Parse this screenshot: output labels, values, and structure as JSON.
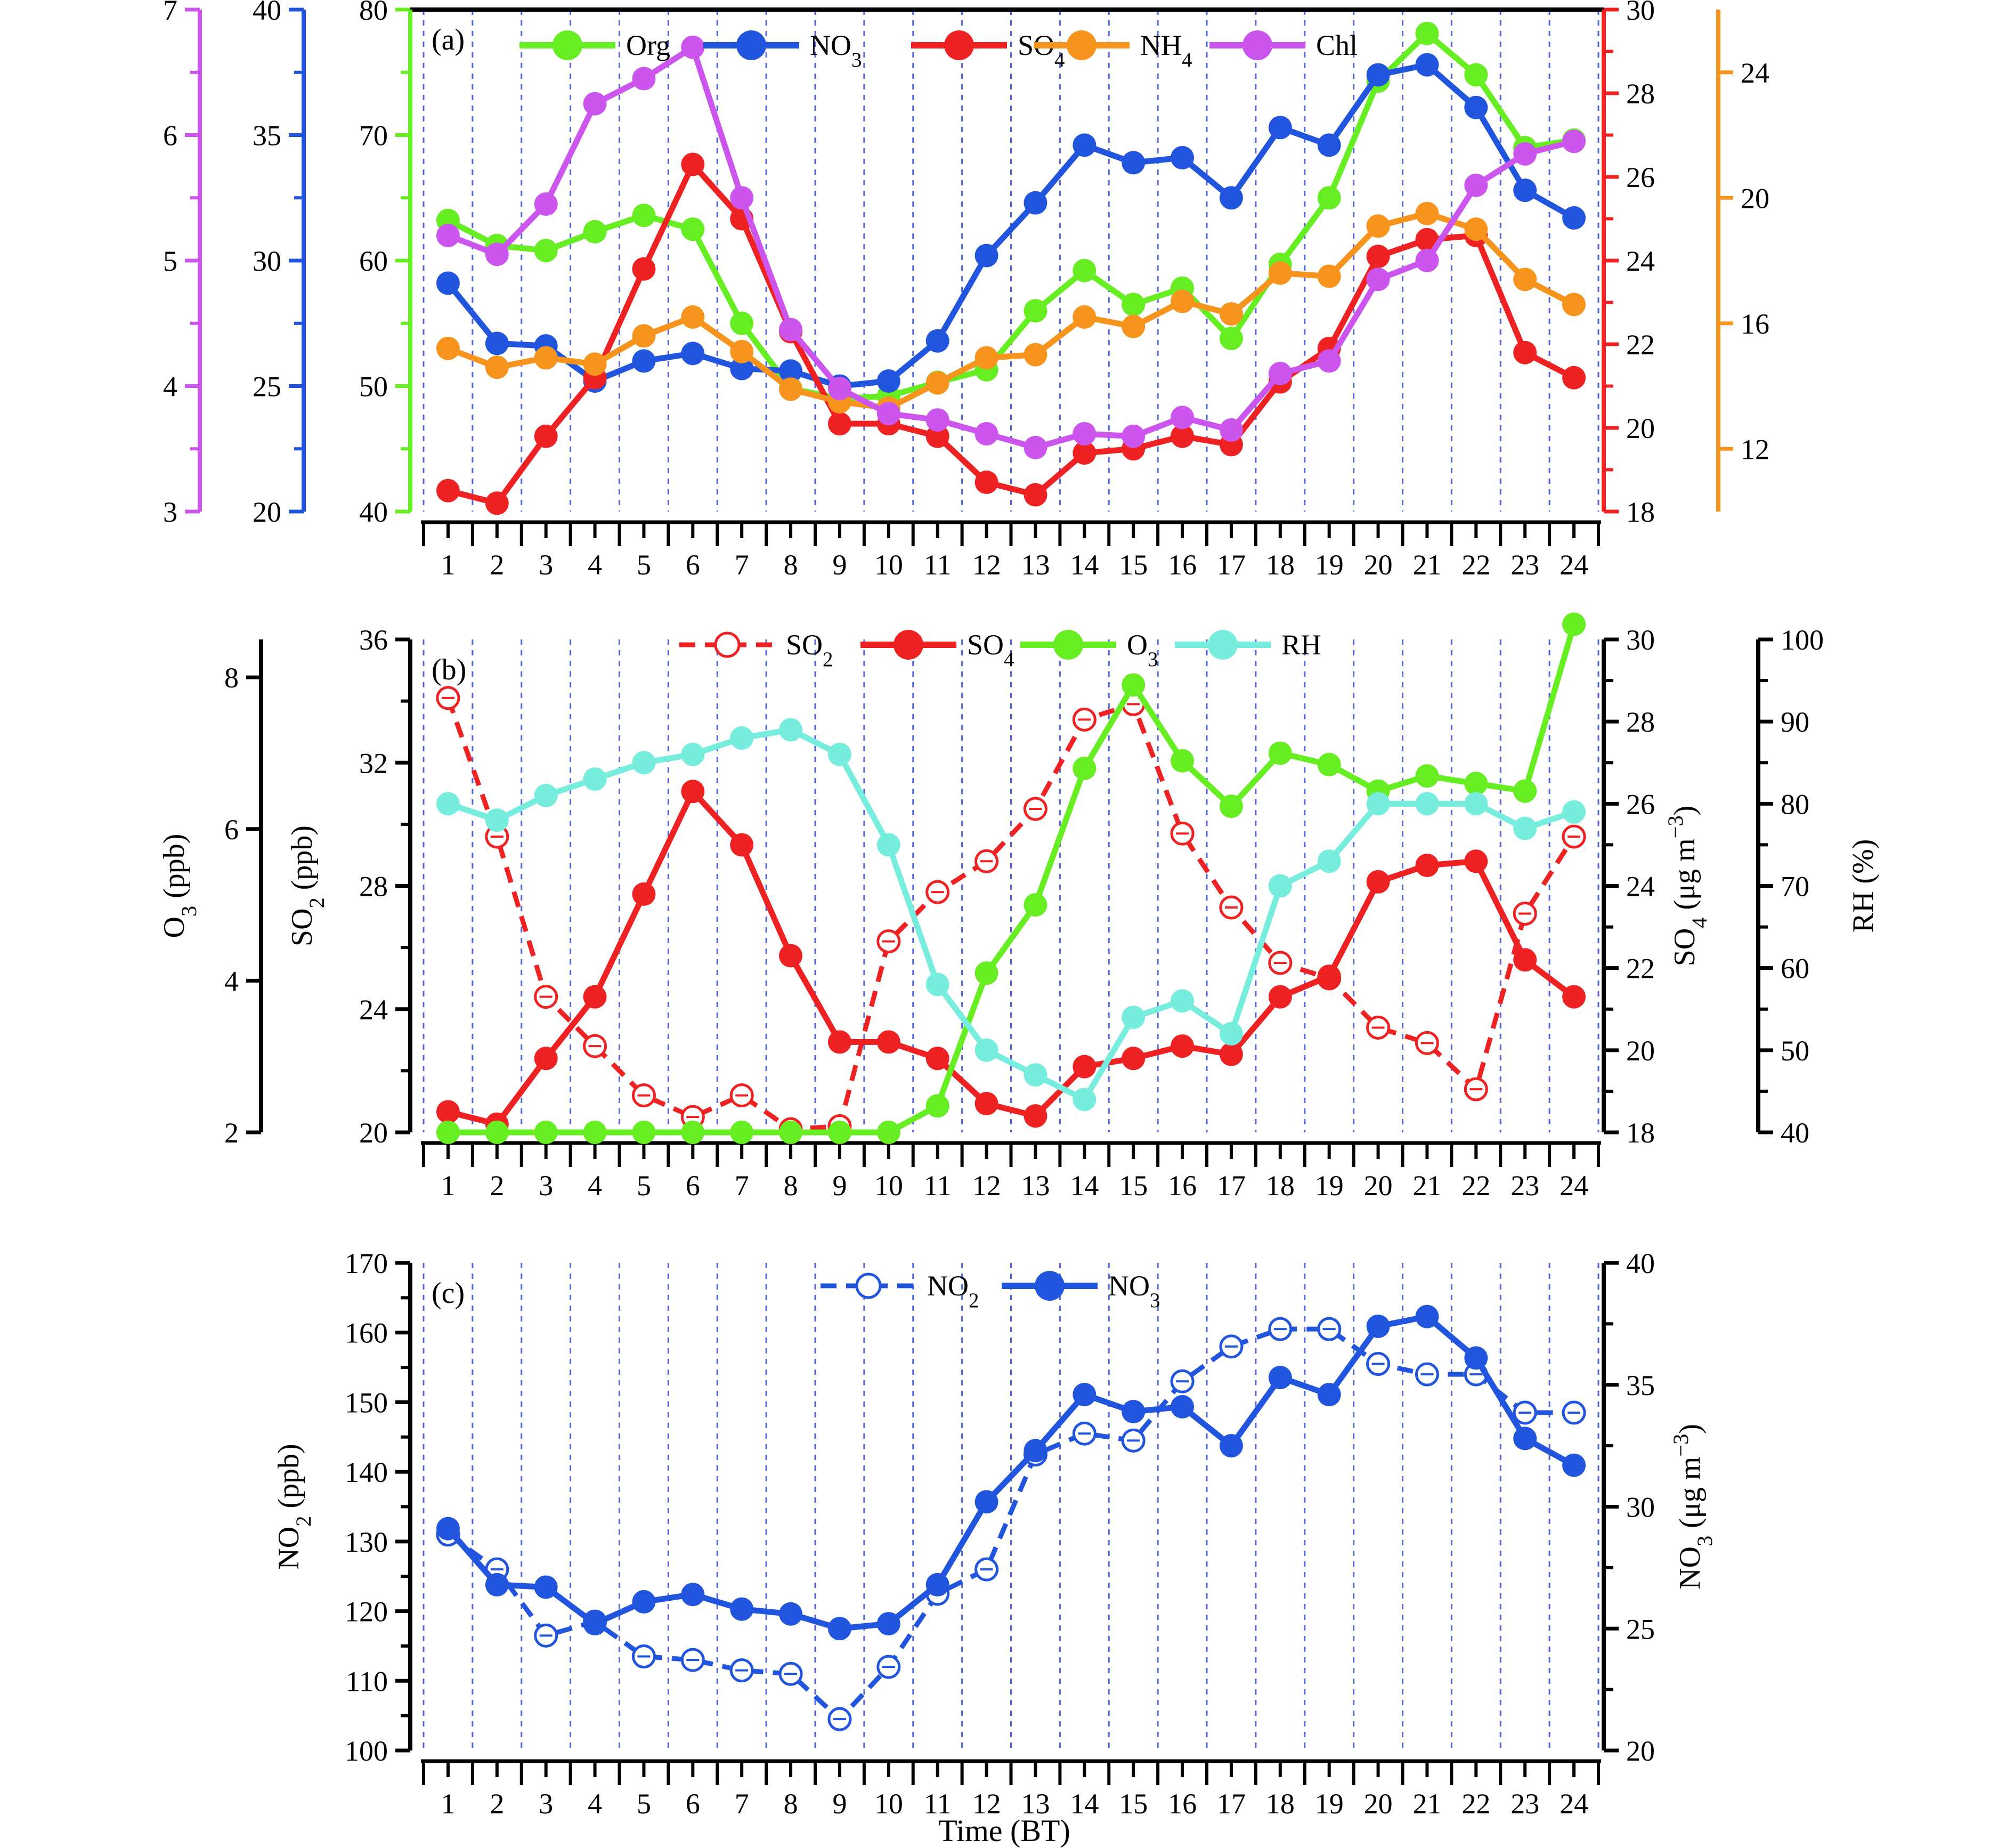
{
  "colors": {
    "org": "#66EE22",
    "no3": "#2255DD",
    "so4": "#EE2222",
    "nh4": "#F7941D",
    "chl": "#CC55EE",
    "so2": "#EE2222",
    "o3": "#66EE22",
    "rh": "#77EEDD",
    "no2": "#2255DD",
    "black": "#000000",
    "gridline": "#5566DD"
  },
  "x_axis_title": "Time (BT)",
  "chart_data": [
    {
      "type": "line",
      "panel_label": "(a)",
      "x": [
        1,
        2,
        3,
        4,
        5,
        6,
        7,
        8,
        9,
        10,
        11,
        12,
        13,
        14,
        15,
        16,
        17,
        18,
        19,
        20,
        21,
        22,
        23,
        24
      ],
      "xlim": [
        0.5,
        24.5
      ],
      "grid": "vertical dashed lines between hours",
      "legend": "top",
      "axes": [
        {
          "id": "chl",
          "side": "left",
          "range": [
            3,
            7
          ],
          "ticks": [
            "3",
            "4",
            "5",
            "6",
            "7"
          ],
          "color_key": "chl"
        },
        {
          "id": "no3",
          "side": "left",
          "range": [
            20,
            40
          ],
          "ticks": [
            "20",
            "25",
            "30",
            "35",
            "40"
          ],
          "color_key": "no3"
        },
        {
          "id": "org",
          "side": "left",
          "range": [
            40,
            80
          ],
          "ticks": [
            "40",
            "50",
            "60",
            "70",
            "80"
          ],
          "color_key": "org"
        },
        {
          "id": "so4",
          "side": "right",
          "range": [
            18,
            30
          ],
          "ticks": [
            "18",
            "20",
            "22",
            "24",
            "26",
            "28",
            "30"
          ],
          "color_key": "so4"
        },
        {
          "id": "nh4",
          "side": "right",
          "range": [
            10,
            26
          ],
          "ticks": [
            "12",
            "16",
            "20",
            "24"
          ],
          "tick_values": [
            12,
            16,
            20,
            24
          ],
          "color_key": "nh4"
        }
      ],
      "series": [
        {
          "name": "Org",
          "axis": "org",
          "color_key": "org",
          "values": [
            63.2,
            61.2,
            60.8,
            62.3,
            63.6,
            62.5,
            55.0,
            49.8,
            49.0,
            49.2,
            50.3,
            51.3,
            56.0,
            59.2,
            56.5,
            57.8,
            53.8,
            59.7,
            65.0,
            74.3,
            78.1,
            74.8,
            69.0,
            69.6
          ]
        },
        {
          "name": "NO3",
          "name_html": "NO<tspan baseline-shift='sub' font-size='0.72em'>3</tspan>",
          "axis": "no3",
          "color_key": "no3",
          "values": [
            29.1,
            26.7,
            26.6,
            25.2,
            26.0,
            26.3,
            25.7,
            25.6,
            25.0,
            25.2,
            26.8,
            30.2,
            32.3,
            34.6,
            33.9,
            34.1,
            32.5,
            35.3,
            34.6,
            37.4,
            37.8,
            36.1,
            32.8,
            31.7
          ]
        },
        {
          "name": "SO4",
          "name_html": "SO<tspan baseline-shift='sub' font-size='0.72em'>4</tspan>",
          "axis": "so4",
          "color_key": "so4",
          "values": [
            18.5,
            18.2,
            19.8,
            21.2,
            23.8,
            26.3,
            25.0,
            22.3,
            20.1,
            20.1,
            19.8,
            18.7,
            18.4,
            19.4,
            19.5,
            19.8,
            19.6,
            21.1,
            21.9,
            24.1,
            24.5,
            24.6,
            21.8,
            21.2
          ]
        },
        {
          "name": "NH4",
          "name_html": "NH<tspan baseline-shift='sub' font-size='0.72em'>4</tspan>",
          "axis": "nh4",
          "color_key": "nh4",
          "values": [
            15.2,
            14.6,
            14.9,
            14.7,
            15.6,
            16.2,
            15.1,
            13.9,
            13.5,
            13.3,
            14.1,
            14.9,
            15.0,
            16.2,
            15.9,
            16.7,
            16.3,
            17.6,
            17.5,
            19.1,
            19.5,
            19.0,
            17.4,
            16.6
          ]
        },
        {
          "name": "Chl",
          "axis": "chl",
          "color_key": "chl",
          "values": [
            5.2,
            5.05,
            5.45,
            6.25,
            6.45,
            6.7,
            5.5,
            4.45,
            3.98,
            3.78,
            3.73,
            3.62,
            3.51,
            3.62,
            3.6,
            3.75,
            3.65,
            4.1,
            4.2,
            4.85,
            5.0,
            5.6,
            5.85,
            5.95
          ]
        }
      ]
    },
    {
      "type": "line",
      "panel_label": "(b)",
      "x": [
        1,
        2,
        3,
        4,
        5,
        6,
        7,
        8,
        9,
        10,
        11,
        12,
        13,
        14,
        15,
        16,
        17,
        18,
        19,
        20,
        21,
        22,
        23,
        24
      ],
      "xlim": [
        0.5,
        24.5
      ],
      "grid": "vertical dashed lines between hours",
      "legend": "top",
      "axes": [
        {
          "id": "o3",
          "side": "left",
          "label_html": "O<tspan baseline-shift='sub' font-size='0.72em'>3</tspan> (ppb)",
          "range": [
            2,
            8.5
          ],
          "ticks": [
            "2",
            "4",
            "6",
            "8"
          ],
          "tick_values": [
            2,
            4,
            6,
            8
          ],
          "color_key": "black"
        },
        {
          "id": "so2",
          "side": "left",
          "label_html": "SO<tspan baseline-shift='sub' font-size='0.72em'>2</tspan> (ppb)",
          "range": [
            20,
            36
          ],
          "ticks": [
            "20",
            "24",
            "28",
            "32",
            "36"
          ],
          "color_key": "black"
        },
        {
          "id": "so4b",
          "side": "right",
          "label_html": "SO<tspan baseline-shift='sub' font-size='0.72em'>4</tspan> (μg m<tspan baseline-shift='super' font-size='0.72em'>−3</tspan>)",
          "range": [
            18,
            30
          ],
          "ticks": [
            "18",
            "20",
            "22",
            "24",
            "26",
            "28",
            "30"
          ],
          "color_key": "black"
        },
        {
          "id": "rh",
          "side": "right",
          "label_html": "RH (%)",
          "range": [
            40,
            100
          ],
          "ticks": [
            "40",
            "50",
            "60",
            "70",
            "80",
            "90",
            "100"
          ],
          "color_key": "black"
        }
      ],
      "series": [
        {
          "name": "SO2",
          "name_html": "SO<tspan baseline-shift='sub' font-size='0.72em'>2</tspan>",
          "axis": "so2",
          "color_key": "so2",
          "style": "dashed-open",
          "values": [
            34.1,
            29.6,
            24.4,
            22.8,
            21.2,
            20.5,
            21.2,
            20.1,
            20.2,
            26.2,
            27.8,
            28.8,
            30.5,
            33.4,
            33.9,
            29.7,
            27.3,
            25.5,
            25.0,
            23.4,
            22.9,
            21.4,
            27.1,
            29.6
          ]
        },
        {
          "name": "SO4",
          "name_html": "SO<tspan baseline-shift='sub' font-size='0.72em'>4</tspan>",
          "axis": "so4b",
          "color_key": "so4",
          "values": [
            18.5,
            18.2,
            19.8,
            21.3,
            23.8,
            26.3,
            25.0,
            22.3,
            20.2,
            20.2,
            19.8,
            18.7,
            18.4,
            19.6,
            19.8,
            20.1,
            19.9,
            21.3,
            21.8,
            24.1,
            24.5,
            24.6,
            22.2,
            21.3
          ]
        },
        {
          "name": "O3",
          "name_html": "O<tspan baseline-shift='sub' font-size='0.72em'>3</tspan>",
          "axis": "o3",
          "color_key": "o3",
          "values": [
            2.0,
            2.0,
            2.0,
            2.0,
            2.0,
            2.0,
            2.0,
            2.0,
            2.0,
            2.0,
            2.35,
            4.1,
            5.0,
            6.8,
            7.9,
            6.9,
            6.3,
            7.0,
            6.85,
            6.5,
            6.7,
            6.6,
            6.5,
            8.7
          ]
        },
        {
          "name": "RH",
          "axis": "rh",
          "color_key": "rh",
          "values": [
            80,
            78,
            81,
            83,
            85,
            86,
            88,
            89,
            86,
            75,
            58,
            50,
            47,
            44,
            54,
            56,
            52,
            70,
            73,
            80,
            80,
            80,
            77,
            79
          ]
        }
      ]
    },
    {
      "type": "line",
      "panel_label": "(c)",
      "x": [
        1,
        2,
        3,
        4,
        5,
        6,
        7,
        8,
        9,
        10,
        11,
        12,
        13,
        14,
        15,
        16,
        17,
        18,
        19,
        20,
        21,
        22,
        23,
        24
      ],
      "xlim": [
        0.5,
        24.5
      ],
      "grid": "vertical dashed lines between hours",
      "legend": "top",
      "axes": [
        {
          "id": "no2",
          "side": "left",
          "label_html": "NO<tspan baseline-shift='sub' font-size='0.72em'>2</tspan> (ppb)",
          "range": [
            100,
            170
          ],
          "ticks": [
            "100",
            "110",
            "120",
            "130",
            "140",
            "150",
            "160",
            "170"
          ],
          "color_key": "black"
        },
        {
          "id": "no3c",
          "side": "right",
          "label_html": "NO<tspan baseline-shift='sub' font-size='0.72em'>3</tspan> (μg m<tspan baseline-shift='super' font-size='0.72em'>−3</tspan>)",
          "range": [
            20,
            40
          ],
          "ticks": [
            "20",
            "25",
            "30",
            "35",
            "40"
          ],
          "color_key": "black"
        }
      ],
      "series": [
        {
          "name": "NO2",
          "name_html": "NO<tspan baseline-shift='sub' font-size='0.72em'>2</tspan>",
          "axis": "no2",
          "color_key": "no2",
          "style": "dashed-open",
          "values": [
            131,
            126,
            116.5,
            118.5,
            113.5,
            113,
            111.5,
            111,
            104.5,
            112,
            122.5,
            126,
            142.5,
            145.5,
            144.5,
            153,
            158,
            160.5,
            160.5,
            155.5,
            154,
            154,
            148.5,
            148.5
          ]
        },
        {
          "name": "NO3",
          "name_html": "NO<tspan baseline-shift='sub' font-size='0.72em'>3</tspan>",
          "axis": "no3c",
          "color_key": "no3",
          "values": [
            29.1,
            26.8,
            26.7,
            25.2,
            26.1,
            26.4,
            25.8,
            25.6,
            25.0,
            25.2,
            26.8,
            30.2,
            32.3,
            34.6,
            33.9,
            34.1,
            32.5,
            35.3,
            34.6,
            37.4,
            37.8,
            36.1,
            32.8,
            31.7
          ]
        }
      ]
    }
  ]
}
